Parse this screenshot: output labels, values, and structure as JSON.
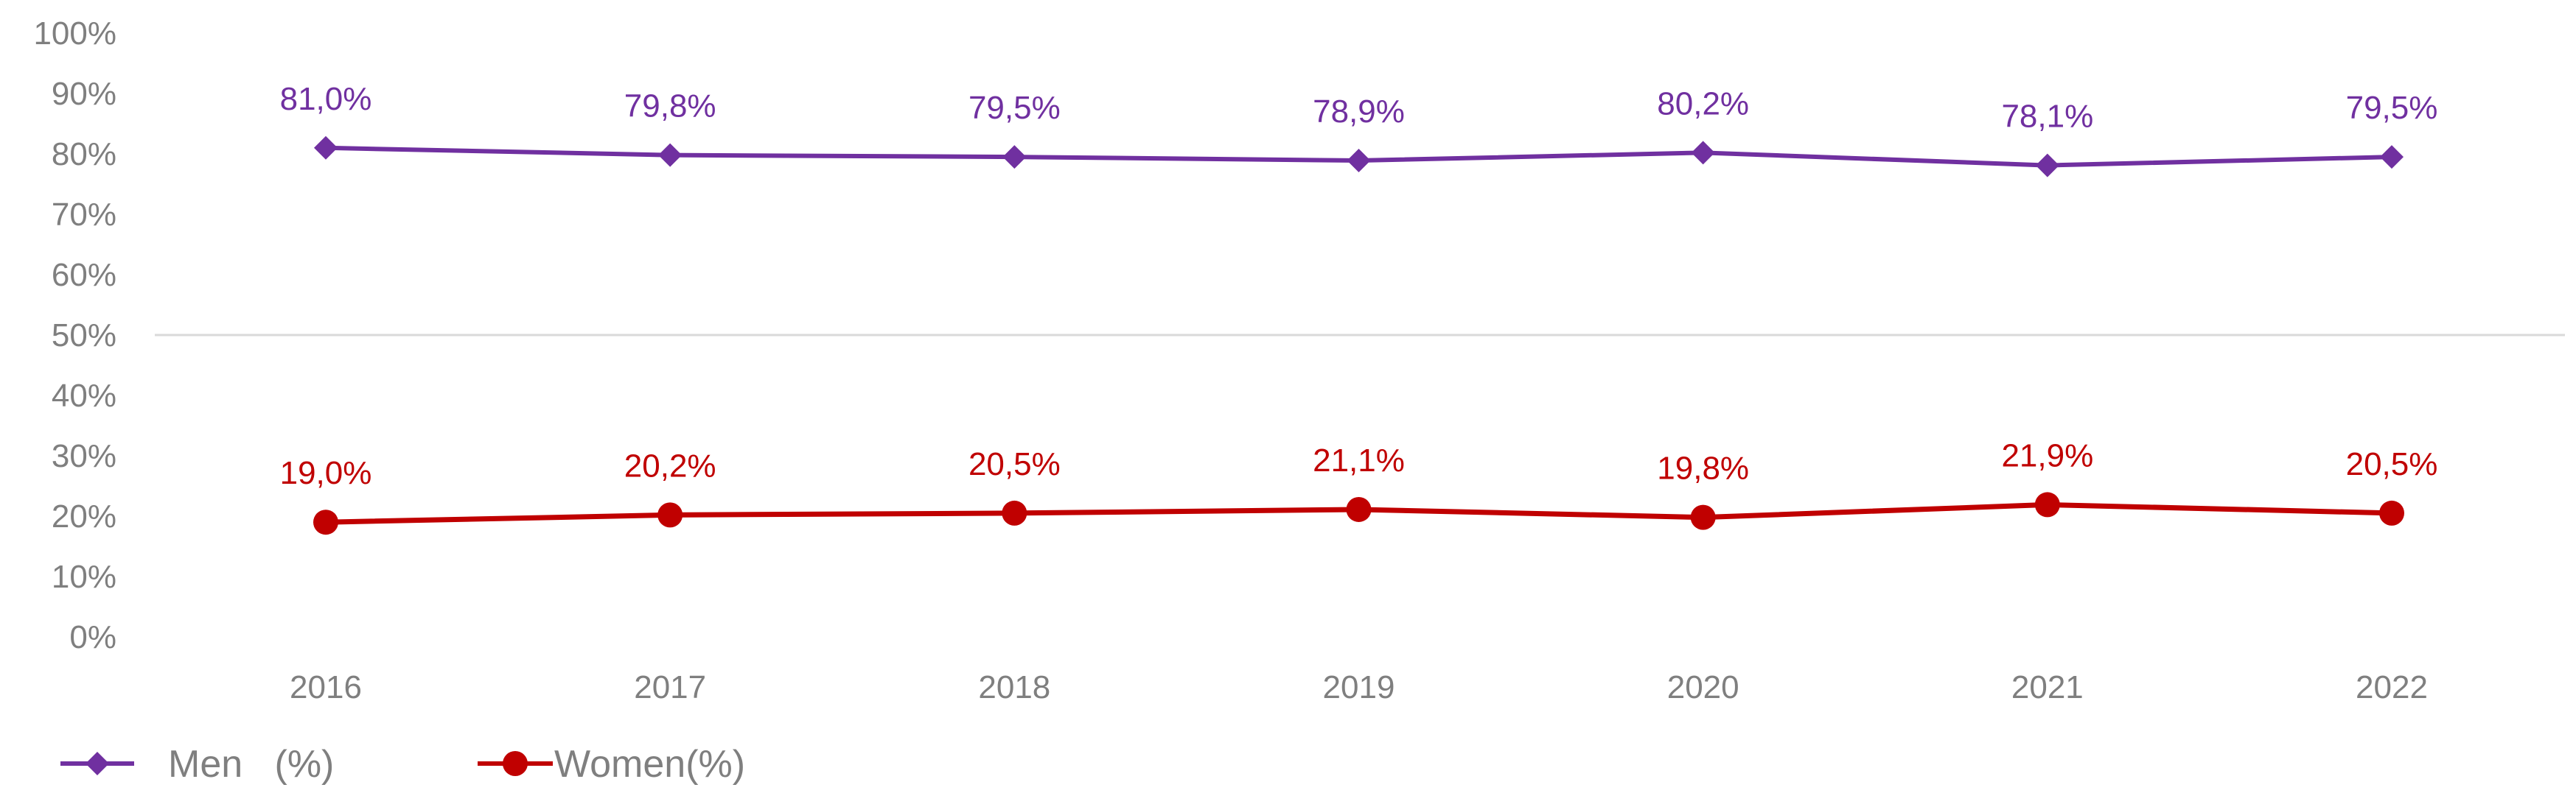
{
  "chart_data": {
    "type": "line",
    "categories": [
      "2016",
      "2017",
      "2018",
      "2019",
      "2020",
      "2021",
      "2022"
    ],
    "ylim": [
      0,
      100
    ],
    "yticks": [
      "0%",
      "10%",
      "20%",
      "30%",
      "40%",
      "50%",
      "60%",
      "70%",
      "80%",
      "90%",
      "100%"
    ],
    "grid": "single horizontal line at 50%",
    "legend_position": "bottom-left",
    "series": [
      {
        "name": "Men   (%)",
        "values": [
          81.0,
          79.8,
          79.5,
          78.9,
          80.2,
          78.1,
          79.5
        ],
        "labels": [
          "81,0%",
          "79,8%",
          "79,5%",
          "78,9%",
          "80,2%",
          "78,1%",
          "79,5%"
        ],
        "color": "#7030a0",
        "marker": "diamond"
      },
      {
        "name": "Women(%)",
        "values": [
          19.0,
          20.2,
          20.5,
          21.1,
          19.8,
          21.9,
          20.5
        ],
        "labels": [
          "19,0%",
          "20,2%",
          "20,5%",
          "21,1%",
          "19,8%",
          "21,9%",
          "20,5%"
        ],
        "color": "#c00000",
        "marker": "circle"
      }
    ]
  }
}
